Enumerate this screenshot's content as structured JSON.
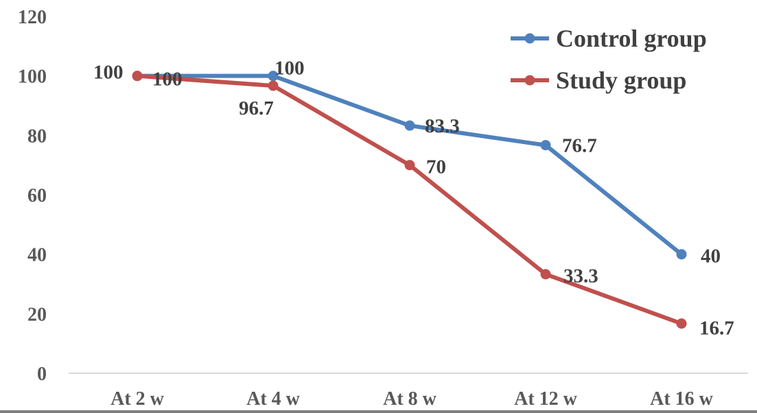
{
  "chart_data": {
    "type": "line",
    "categories": [
      "At 2 w",
      "At 4 w",
      "At 8 w",
      "At 12 w",
      "At 16 w"
    ],
    "series": [
      {
        "name": "Control group",
        "color": "#4F81BD",
        "values": [
          100,
          100,
          83.3,
          76.7,
          40
        ],
        "labels": [
          "100",
          "100",
          "83.3",
          "76.7",
          "40"
        ]
      },
      {
        "name": "Study group",
        "color": "#C0504D",
        "values": [
          100,
          96.7,
          70,
          33.3,
          16.7
        ],
        "labels": [
          "100",
          "96.7",
          "70",
          "33.3",
          "16.7"
        ]
      }
    ],
    "y_ticks": [
      "0",
      "20",
      "40",
      "60",
      "80",
      "100",
      "120"
    ],
    "ylim": [
      0,
      120
    ],
    "grid": false,
    "legend_position": "top-right"
  }
}
